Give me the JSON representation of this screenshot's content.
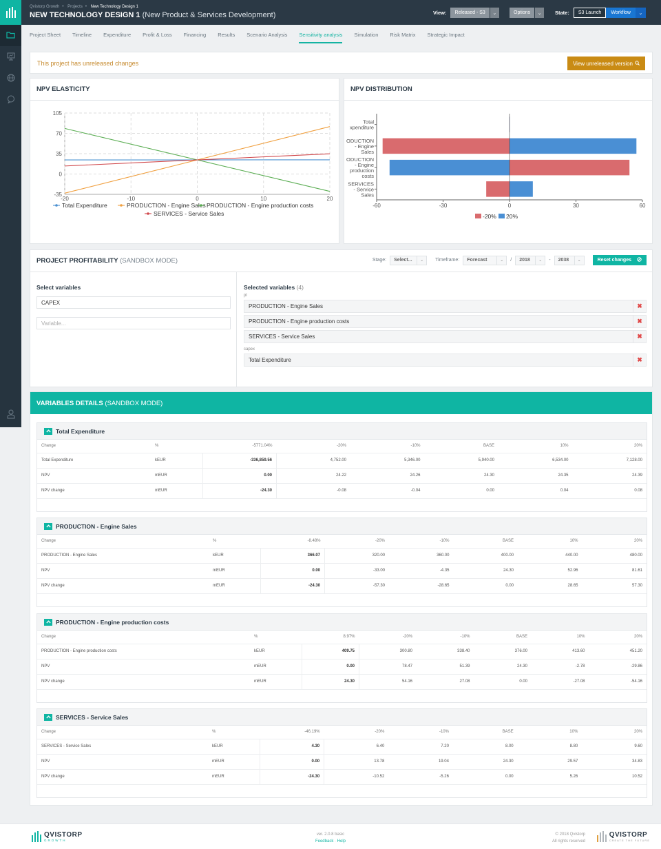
{
  "breadcrumb": [
    "Qvistorp Growth",
    "Projects",
    "New Technology Design 1"
  ],
  "project": {
    "name": "NEW TECHNOLOGY DESIGN 1",
    "type": "(New Product & Services Development)"
  },
  "view": {
    "label": "View:",
    "value": "Released - S3"
  },
  "options_label": "Options",
  "state": {
    "label": "State:",
    "value": "S3 Launch",
    "workflow": "Workflow"
  },
  "tabs": [
    "Project Sheet",
    "Timeline",
    "Expenditure",
    "Profit & Loss",
    "Financing",
    "Results",
    "Scenario Analysis",
    "Sensitivity analysis",
    "Simulation",
    "Risk Matrix",
    "Strategic Impact"
  ],
  "active_tab": "Sensitivity analysis",
  "notice": {
    "message": "This project has unreleased changes",
    "button": "View unreleased version"
  },
  "elasticity": {
    "title": "NPV ELASTICITY"
  },
  "distribution": {
    "title": "NPV DISTRIBUTION"
  },
  "chart_data": [
    {
      "type": "line",
      "title": "NPV ELASTICITY",
      "x": [
        -20,
        20
      ],
      "xticks": [
        "-20",
        "-10",
        "0",
        "10",
        "20"
      ],
      "yticks": [
        "-35",
        "0",
        "35",
        "70",
        "105"
      ],
      "xlim": [
        -20,
        20
      ],
      "ylim": [
        -35,
        105
      ],
      "grid": true,
      "legend_position": "bottom",
      "series": [
        {
          "name": "Total Expenditure",
          "color": "#4a90d0",
          "values": [
            24.22,
            24.39
          ]
        },
        {
          "name": "PRODUCTION - Engine Sales",
          "color": "#f0a040",
          "values": [
            -33.0,
            81.61
          ]
        },
        {
          "name": "PRODUCTION - Engine production costs",
          "color": "#5cae54",
          "values": [
            78.47,
            -29.86
          ]
        },
        {
          "name": "SERVICES - Service Sales",
          "color": "#d0484c",
          "values": [
            13.78,
            34.83
          ]
        }
      ]
    },
    {
      "type": "bar",
      "orientation": "horizontal",
      "title": "NPV DISTRIBUTION",
      "categories": [
        "Total Expenditure",
        "PRODUCTION - Engine Sales",
        "PRODUCTION - Engine production costs",
        "SERVICES - Service Sales"
      ],
      "xticks": [
        "-60",
        "-30",
        "0",
        "30",
        "60"
      ],
      "xlim": [
        -60,
        60
      ],
      "legend_position": "bottom",
      "series": [
        {
          "name": "-20%",
          "color": "#d96b6e",
          "values": [
            -0.08,
            -57.3,
            54.16,
            -10.52
          ]
        },
        {
          "name": "20%",
          "color": "#4a8fd4",
          "values": [
            0.08,
            57.3,
            -54.16,
            10.52
          ]
        }
      ]
    }
  ],
  "profitability": {
    "title": "PROJECT PROFITABILITY",
    "mode": "(SANDBOX MODE)",
    "stage_label": "Stage:",
    "stage_value": "Select...",
    "timeframe_label": "Timeframe:",
    "timeframe_value": "Forecast",
    "slash": "/",
    "year_from": "2018",
    "dash": "-",
    "year_to": "2038",
    "reset_label": "Reset changes",
    "select_title": "Select variables",
    "select_value": "CAPEX",
    "variable_placeholder": "Variable...",
    "selected_title": "Selected variables",
    "selected_count": "(4)",
    "groups": [
      {
        "name": "pl",
        "items": [
          "PRODUCTION - Engine Sales",
          "PRODUCTION - Engine production costs",
          "SERVICES - Service Sales"
        ]
      },
      {
        "name": "capex",
        "items": [
          "Total Expenditure"
        ]
      }
    ]
  },
  "details": {
    "title": "VARIABLES DETAILS",
    "mode": "(SANDBOX MODE)",
    "tables": [
      {
        "title": "Total Expenditure",
        "headers": [
          "Change",
          "%",
          "-5771.04%",
          "-20%",
          "-10%",
          "BASE",
          "10%",
          "20%"
        ],
        "rows": [
          [
            "Total Expenditure",
            "kEUR",
            "-336,859.56",
            "4,752.00",
            "5,346.00",
            "5,940.00",
            "6,534.00",
            "7,128.00"
          ],
          [
            "NPV",
            "mEUR",
            "0.00",
            "24.22",
            "24.26",
            "24.30",
            "24.35",
            "24.39"
          ],
          [
            "NPV change",
            "mEUR",
            "-24.30",
            "-0.08",
            "-0.04",
            "0.00",
            "0.04",
            "0.08"
          ]
        ]
      },
      {
        "title": "PRODUCTION - Engine Sales",
        "headers": [
          "Change",
          "%",
          "-8.48%",
          "-20%",
          "-10%",
          "BASE",
          "10%",
          "20%"
        ],
        "rows": [
          [
            "PRODUCTION - Engine Sales",
            "kEUR",
            "366.07",
            "320.00",
            "360.00",
            "400.00",
            "440.00",
            "480.00"
          ],
          [
            "NPV",
            "mEUR",
            "0.00",
            "-33.00",
            "-4.35",
            "24.30",
            "52.96",
            "81.61"
          ],
          [
            "NPV change",
            "mEUR",
            "-24.30",
            "-57.30",
            "-28.65",
            "0.00",
            "28.65",
            "57.30"
          ]
        ]
      },
      {
        "title": "PRODUCTION - Engine production costs",
        "headers": [
          "Change",
          "%",
          "8.97%",
          "-20%",
          "-10%",
          "BASE",
          "10%",
          "20%"
        ],
        "rows": [
          [
            "PRODUCTION - Engine production costs",
            "kEUR",
            "409.75",
            "300.80",
            "338.40",
            "376.00",
            "413.60",
            "451.20"
          ],
          [
            "NPV",
            "mEUR",
            "0.00",
            "78.47",
            "51.39",
            "24.30",
            "-2.78",
            "-29.86"
          ],
          [
            "NPV change",
            "mEUR",
            "24.30",
            "54.16",
            "27.08",
            "0.00",
            "-27.08",
            "-54.16"
          ]
        ]
      },
      {
        "title": "SERVICES - Service Sales",
        "headers": [
          "Change",
          "%",
          "-46.19%",
          "-20%",
          "-10%",
          "BASE",
          "10%",
          "20%"
        ],
        "rows": [
          [
            "SERVICES - Service Sales",
            "kEUR",
            "4.30",
            "6.40",
            "7.20",
            "8.00",
            "8.80",
            "9.60"
          ],
          [
            "NPV",
            "mEUR",
            "0.00",
            "13.78",
            "19.04",
            "24.30",
            "29.57",
            "34.83"
          ],
          [
            "NPV change",
            "mEUR",
            "-24.30",
            "-10.52",
            "-5.26",
            "0.00",
            "5.26",
            "10.52"
          ]
        ]
      }
    ]
  },
  "footer": {
    "brand": "QVISTORP",
    "brand_sub": "GROWTH",
    "version": "ver. 2.0.8 basic",
    "feedback": "Feedback",
    "sep": "·",
    "help": "Help",
    "copyright": "© 2018 Qvistorp",
    "rights": "All rights reserved",
    "brand2": "QVISTORP",
    "brand2_sub": "CREATE THE FUTURE"
  },
  "colors": {
    "accent": "#0fb5a3",
    "sidebar": "#26343f",
    "topbar": "#2b3945",
    "warning": "#c98b14",
    "danger": "#e04848"
  }
}
